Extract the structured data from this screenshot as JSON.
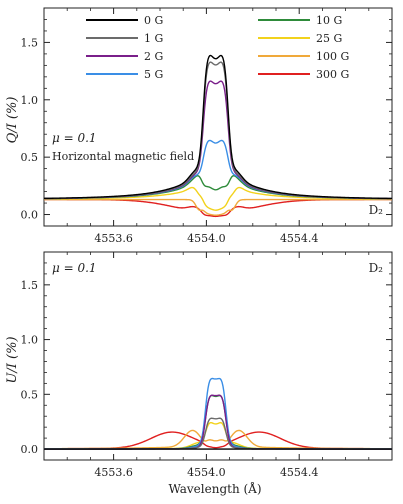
{
  "figure": {
    "xlabel": "Wavelength (Å)"
  },
  "chart_data": [
    {
      "type": "line",
      "panel": "top",
      "ylabel": "Q/I (%)",
      "annotations": [
        "μ = 0.1",
        "Horizontal magnetic field",
        "D₂"
      ],
      "xlim": [
        4553.3,
        4554.8
      ],
      "ylim": [
        -0.1,
        1.8
      ],
      "xticks": [
        4553.6,
        4554.0,
        4554.4
      ],
      "yticks": [
        0.0,
        0.5,
        1.0,
        1.5
      ],
      "legend_position": "top",
      "series": [
        {
          "name": "0 G",
          "color": "#000000",
          "peak": 1.42,
          "dip": 1.32,
          "wing": 0.37,
          "cont": 0.13
        },
        {
          "name": "1 G",
          "color": "#6b6b6b",
          "peak": 1.36,
          "dip": 1.27,
          "wing": 0.35,
          "cont": 0.13
        },
        {
          "name": "2 G",
          "color": "#7a1f8a",
          "peak": 1.19,
          "dip": 1.11,
          "wing": 0.34,
          "cont": 0.13
        },
        {
          "name": "5 G",
          "color": "#3a8ee6",
          "peak": 0.66,
          "dip": 0.6,
          "wing": 0.33,
          "cont": 0.13
        },
        {
          "name": "10 G",
          "color": "#2e8b3a",
          "peak": 0.24,
          "dip": 0.2,
          "wing": 0.31,
          "cont": 0.13
        },
        {
          "name": "25 G",
          "color": "#f2d21c",
          "peak": 0.05,
          "dip": 0.03,
          "wing": 0.25,
          "cont": 0.13
        },
        {
          "name": "100 G",
          "color": "#f0a93a",
          "peak": 0.0,
          "dip": -0.01,
          "wing": 0.13,
          "cont": 0.13
        },
        {
          "name": "300 G",
          "color": "#e02020",
          "peak": -0.01,
          "dip": -0.02,
          "wing": 0.03,
          "cont": 0.13
        }
      ]
    },
    {
      "type": "line",
      "panel": "bottom",
      "ylabel": "U/I (%)",
      "annotations": [
        "μ = 0.1",
        "D₂"
      ],
      "xlim": [
        4553.3,
        4554.8
      ],
      "ylim": [
        -0.1,
        1.8
      ],
      "xticks": [
        4553.6,
        4554.0,
        4554.4
      ],
      "yticks": [
        0.0,
        0.5,
        1.0,
        1.5
      ],
      "series": [
        {
          "name": "0 G",
          "color": "#000000",
          "peak": 0.0,
          "dip": 0.0,
          "lobe": 0.0
        },
        {
          "name": "1 G",
          "color": "#6b6b6b",
          "peak": 0.3,
          "dip": 0.27,
          "lobe": 0.01
        },
        {
          "name": "2 G",
          "color": "#7a1f8a",
          "peak": 0.52,
          "dip": 0.48,
          "lobe": 0.01
        },
        {
          "name": "5 G",
          "color": "#3a8ee6",
          "peak": 0.68,
          "dip": 0.63,
          "lobe": 0.02
        },
        {
          "name": "10 G",
          "color": "#2e8b3a",
          "peak": 0.52,
          "dip": 0.47,
          "lobe": 0.03
        },
        {
          "name": "25 G",
          "color": "#f2d21c",
          "peak": 0.26,
          "dip": 0.22,
          "lobe": 0.05
        },
        {
          "name": "100 G",
          "color": "#f0a93a",
          "peak": 0.09,
          "dip": 0.07,
          "lobe": 0.15
        },
        {
          "name": "300 G",
          "color": "#e02020",
          "peak": 0.02,
          "dip": 0.01,
          "lobe": 0.14
        }
      ]
    }
  ]
}
